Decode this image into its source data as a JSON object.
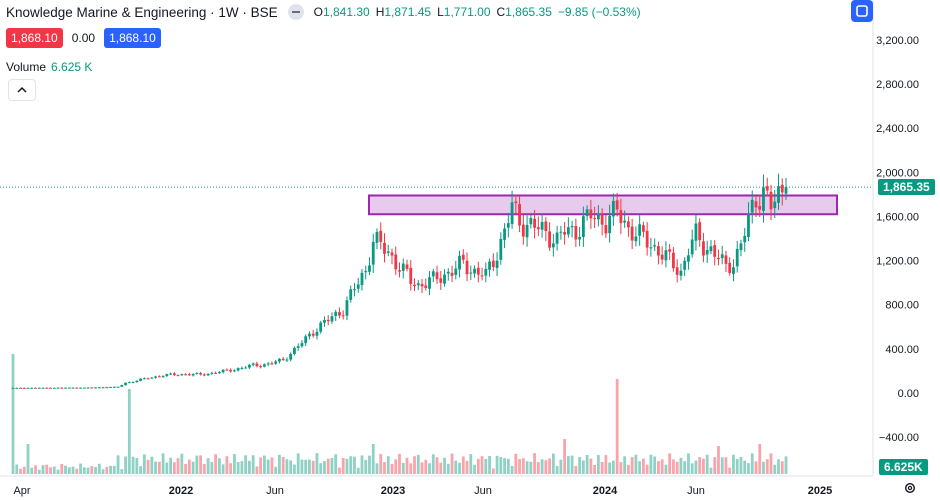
{
  "header": {
    "symbol_title": "Knowledge Marine & Engineering · 1W · BSE",
    "open_label": "O",
    "open": "1,841.30",
    "high_label": "H",
    "high": "1,871.45",
    "low_label": "L",
    "low": "1,771.00",
    "close_label": "C",
    "close": "1,865.35",
    "change": "−9.85 (−0.53%)"
  },
  "order": {
    "sell_price": "1,868.10",
    "spread": "0.00",
    "buy_price": "1,868.10"
  },
  "volume": {
    "label": "Volume",
    "value": "6.625 K"
  },
  "price_tag": "1,865.35",
  "volume_tag": "6.625K",
  "colors": {
    "up": "#089981",
    "down": "#f23645",
    "zone_fill": "#e1bee7",
    "zone_border": "#9c27b0",
    "accent": "#2962ff"
  },
  "icons": {
    "collapse": "chevron-up-icon",
    "settings": "gear-icon",
    "fullscreen": "square-icon",
    "hide": "minus-icon"
  },
  "chart_data": {
    "type": "candlestick",
    "y_ticks": [
      "3,200.00",
      "2,800.00",
      "2,400.00",
      "2,000.00",
      "1,600.00",
      "1,200.00",
      "800.00",
      "400.00",
      "0.00",
      "−400.00"
    ],
    "y_tick_values": [
      3200,
      2800,
      2400,
      2000,
      1600,
      1200,
      800,
      400,
      0,
      -400
    ],
    "x_ticks": [
      "Apr",
      "2022",
      "Jun",
      "2023",
      "Jun",
      "2024",
      "Jun",
      "2025"
    ],
    "ylim": [
      -640,
      3430
    ],
    "last_price": 1865.35,
    "resistance_zone": [
      1620,
      1790
    ],
    "anchors": [
      [
        0,
        45
      ],
      [
        20,
        48
      ],
      [
        28,
        55
      ],
      [
        30,
        90
      ],
      [
        34,
        120
      ],
      [
        40,
        160
      ],
      [
        46,
        170
      ],
      [
        50,
        165
      ],
      [
        56,
        195
      ],
      [
        60,
        220
      ],
      [
        64,
        250
      ],
      [
        68,
        260
      ],
      [
        72,
        300
      ],
      [
        76,
        420
      ],
      [
        80,
        560
      ],
      [
        84,
        660
      ],
      [
        88,
        760
      ],
      [
        90,
        880
      ],
      [
        94,
        1120
      ],
      [
        96,
        1380
      ],
      [
        98,
        1330
      ],
      [
        100,
        1280
      ],
      [
        103,
        1140
      ],
      [
        106,
        1020
      ],
      [
        108,
        980
      ],
      [
        112,
        1020
      ],
      [
        114,
        1060
      ],
      [
        118,
        1120
      ],
      [
        120,
        1180
      ],
      [
        123,
        1100
      ],
      [
        126,
        1060
      ],
      [
        129,
        1280
      ],
      [
        131,
        1460
      ],
      [
        133,
        1680
      ],
      [
        135,
        1560
      ],
      [
        139,
        1500
      ],
      [
        142,
        1460
      ],
      [
        145,
        1380
      ],
      [
        147,
        1460
      ],
      [
        150,
        1480
      ],
      [
        154,
        1600
      ],
      [
        158,
        1560
      ],
      [
        161,
        1640
      ],
      [
        164,
        1500
      ],
      [
        167,
        1420
      ],
      [
        170,
        1350
      ],
      [
        173,
        1260
      ],
      [
        176,
        1160
      ],
      [
        178,
        1100
      ],
      [
        180,
        1300
      ],
      [
        182,
        1420
      ],
      [
        184,
        1340
      ],
      [
        186,
        1300
      ],
      [
        188,
        1220
      ],
      [
        190,
        1130
      ],
      [
        192,
        1200
      ],
      [
        194,
        1340
      ],
      [
        196,
        1560
      ],
      [
        198,
        1760
      ],
      [
        200,
        1840
      ],
      [
        202,
        1680
      ],
      [
        203,
        1720
      ],
      [
        205,
        1840
      ],
      [
        206,
        1865
      ]
    ],
    "volume_spikes": {
      "0": 120,
      "31": 85,
      "161": 95,
      "4": 30,
      "96": 30,
      "147": 35,
      "199": 30,
      "188": 28
    }
  }
}
